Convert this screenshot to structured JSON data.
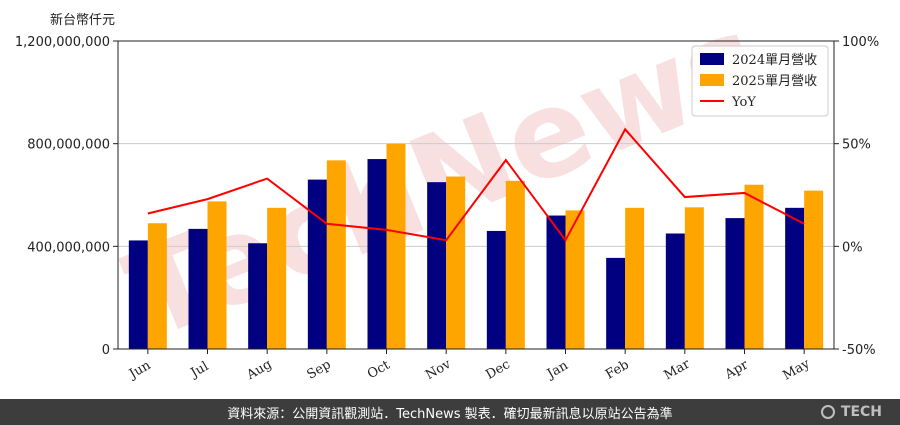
{
  "unit_label": "新台幣仟元",
  "watermark": "TechNews",
  "footer": {
    "source_text": "資料來源：公開資訊觀測站．TechNews 製表．確切最新訊息以原站公告為準",
    "brand": "TECH"
  },
  "colors": {
    "series_2024": "#000080",
    "series_2025": "#FFA500",
    "yoy": "#FF0000",
    "watermark": "#f3c7c7"
  },
  "chart_data": {
    "type": "bar",
    "categories": [
      "Jun",
      "Jul",
      "Aug",
      "Sep",
      "Oct",
      "Nov",
      "Dec",
      "Jan",
      "Feb",
      "Mar",
      "Apr",
      "May"
    ],
    "series": [
      {
        "name": "2024單月營收",
        "values": [
          423000000,
          468000000,
          412000000,
          660000000,
          740000000,
          650000000,
          460000000,
          520000000,
          355000000,
          450000000,
          510000000,
          550000000
        ]
      },
      {
        "name": "2025單月營收",
        "values": [
          490000000,
          575000000,
          550000000,
          735000000,
          800000000,
          672000000,
          655000000,
          540000000,
          550000000,
          552000000,
          640000000,
          617000000
        ]
      }
    ],
    "line_series": {
      "name": "YoY",
      "values": [
        16,
        23,
        33,
        11,
        8,
        3,
        42,
        3,
        57,
        24,
        26,
        11
      ]
    },
    "ylim_left": [
      0,
      1200000000
    ],
    "yticks_left": [
      "0",
      "400,000,000",
      "800,000,000",
      "1,200,000,000"
    ],
    "ylim_right": [
      -50,
      100
    ],
    "yticks_right": [
      "-50%",
      "0%",
      "50%",
      "100%"
    ],
    "grid": "horizontal",
    "legend_position": "top-right"
  }
}
